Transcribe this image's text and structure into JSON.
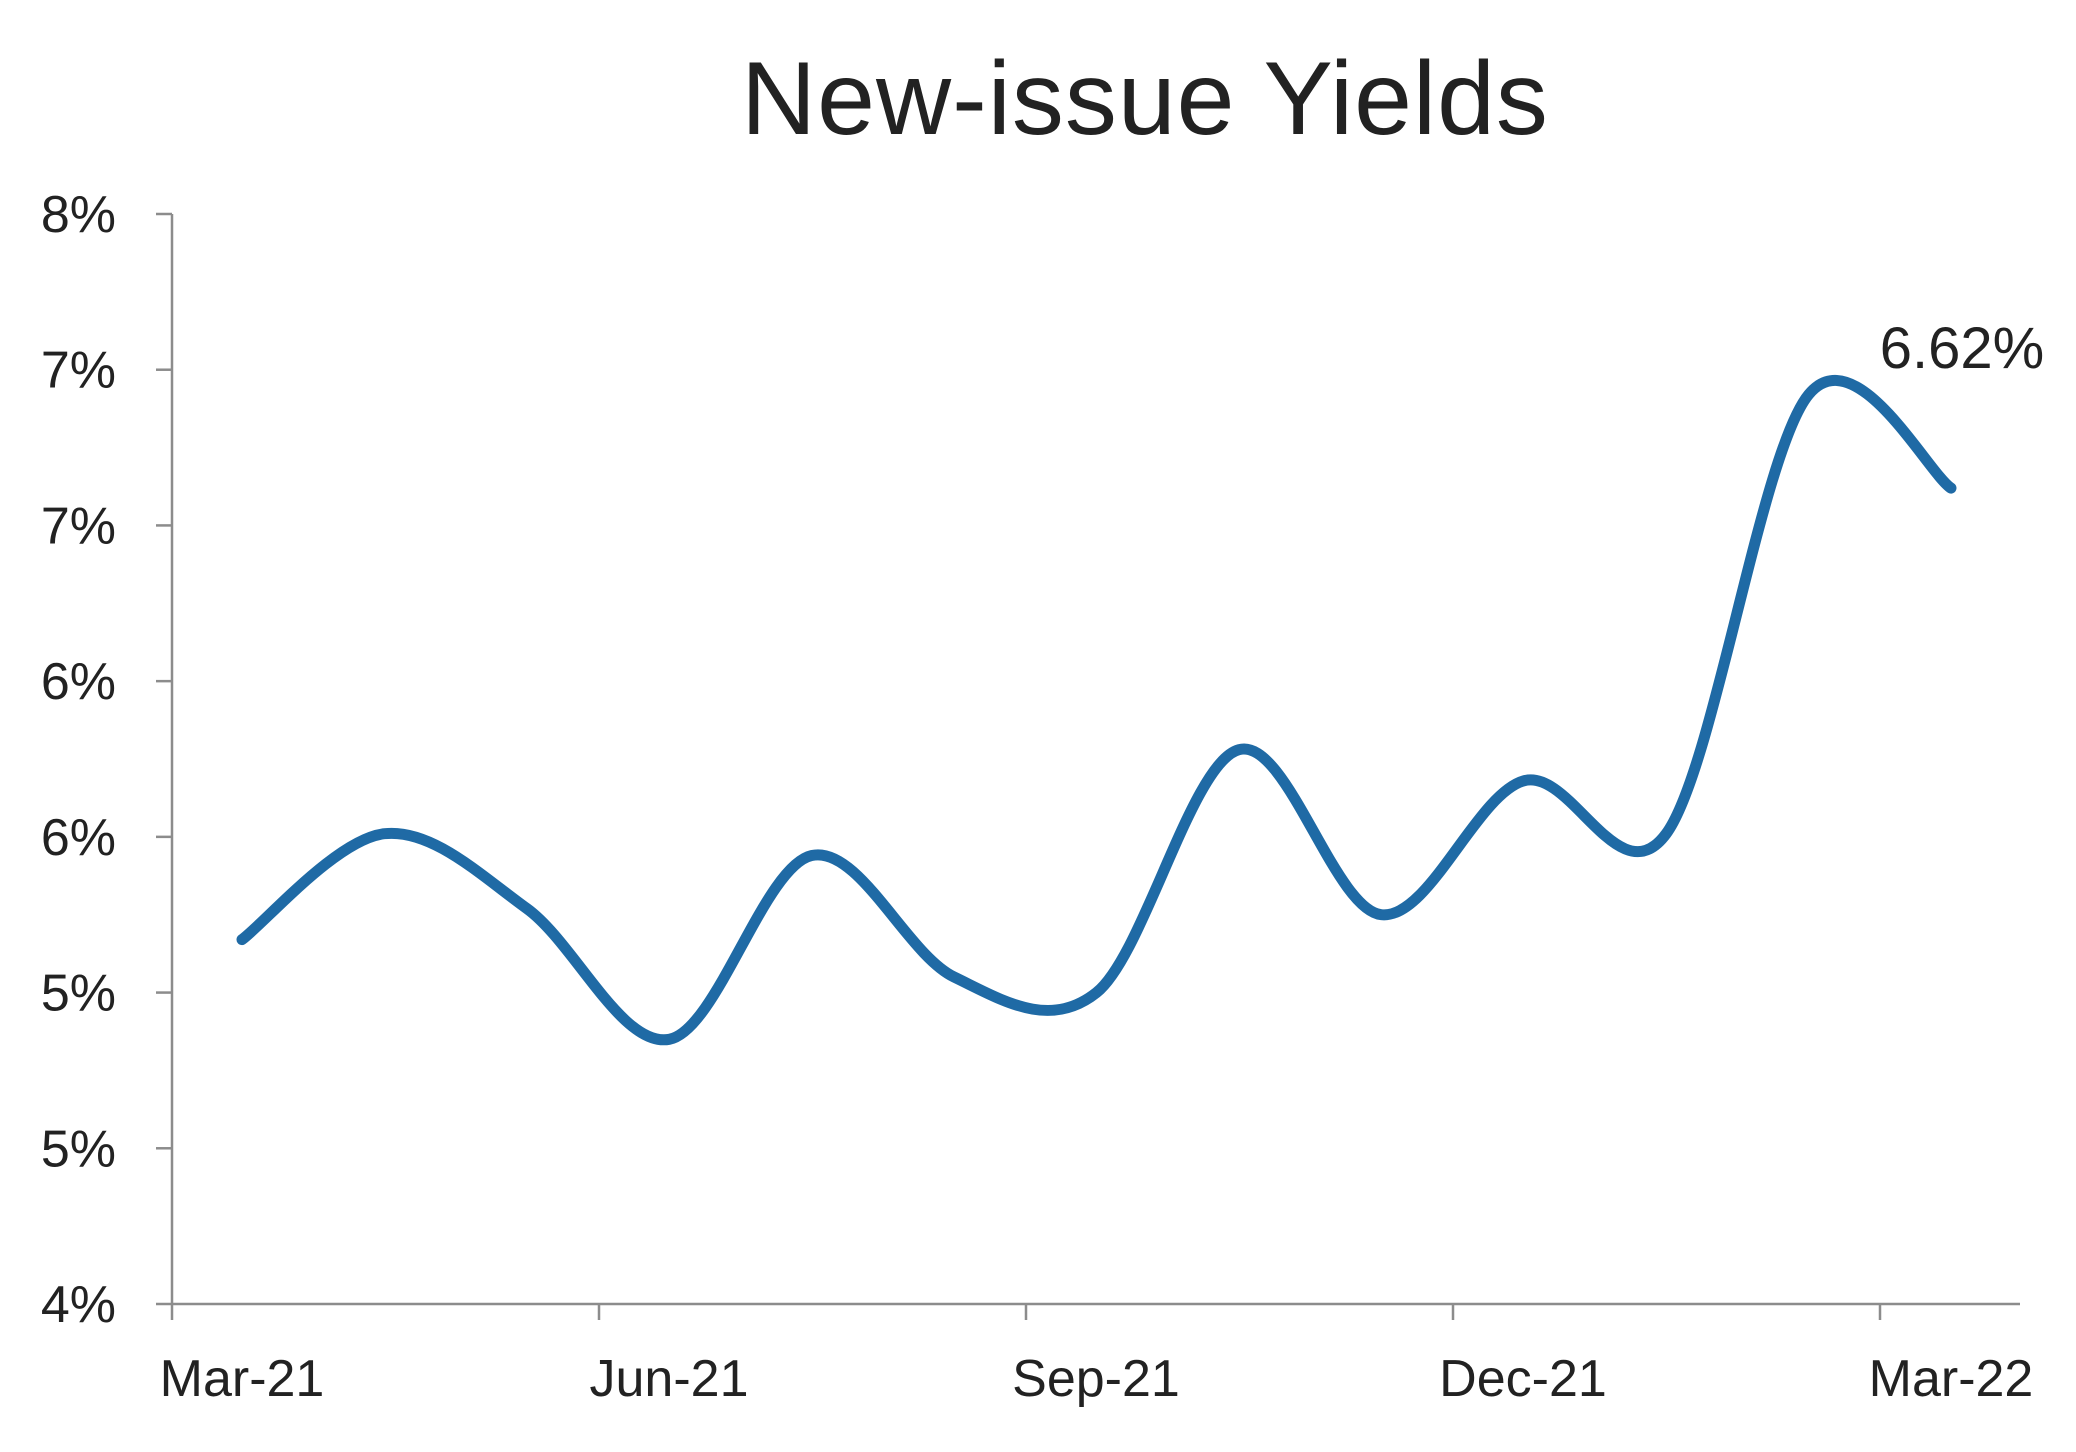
{
  "chart_data": {
    "type": "line",
    "title": "New-issue Yields",
    "xlabel": "",
    "ylabel": "",
    "x_tick_labels": [
      "Mar-21",
      "Jun-21",
      "Sep-21",
      "Dec-21",
      "Mar-22"
    ],
    "y_tick_labels": [
      "4%",
      "5%",
      "5%",
      "6%",
      "6%",
      "7%",
      "7%",
      "8%"
    ],
    "ylim": [
      4.0,
      7.5
    ],
    "grid": false,
    "legend": "none",
    "series": [
      {
        "color": "#1f6aa5",
        "x": [
          "Mar-21",
          "Apr-21",
          "May-21",
          "Jun-21",
          "Jul-21",
          "Aug-21",
          "Sep-21",
          "Oct-21",
          "Nov-21",
          "Dec-21",
          "Jan-22",
          "Feb-22",
          "Mar-22"
        ],
        "values": [
          5.17,
          5.51,
          5.27,
          4.85,
          5.44,
          5.05,
          5.0,
          5.78,
          5.25,
          5.68,
          5.51,
          6.92,
          6.62
        ]
      }
    ],
    "end_label": "6.62%"
  }
}
